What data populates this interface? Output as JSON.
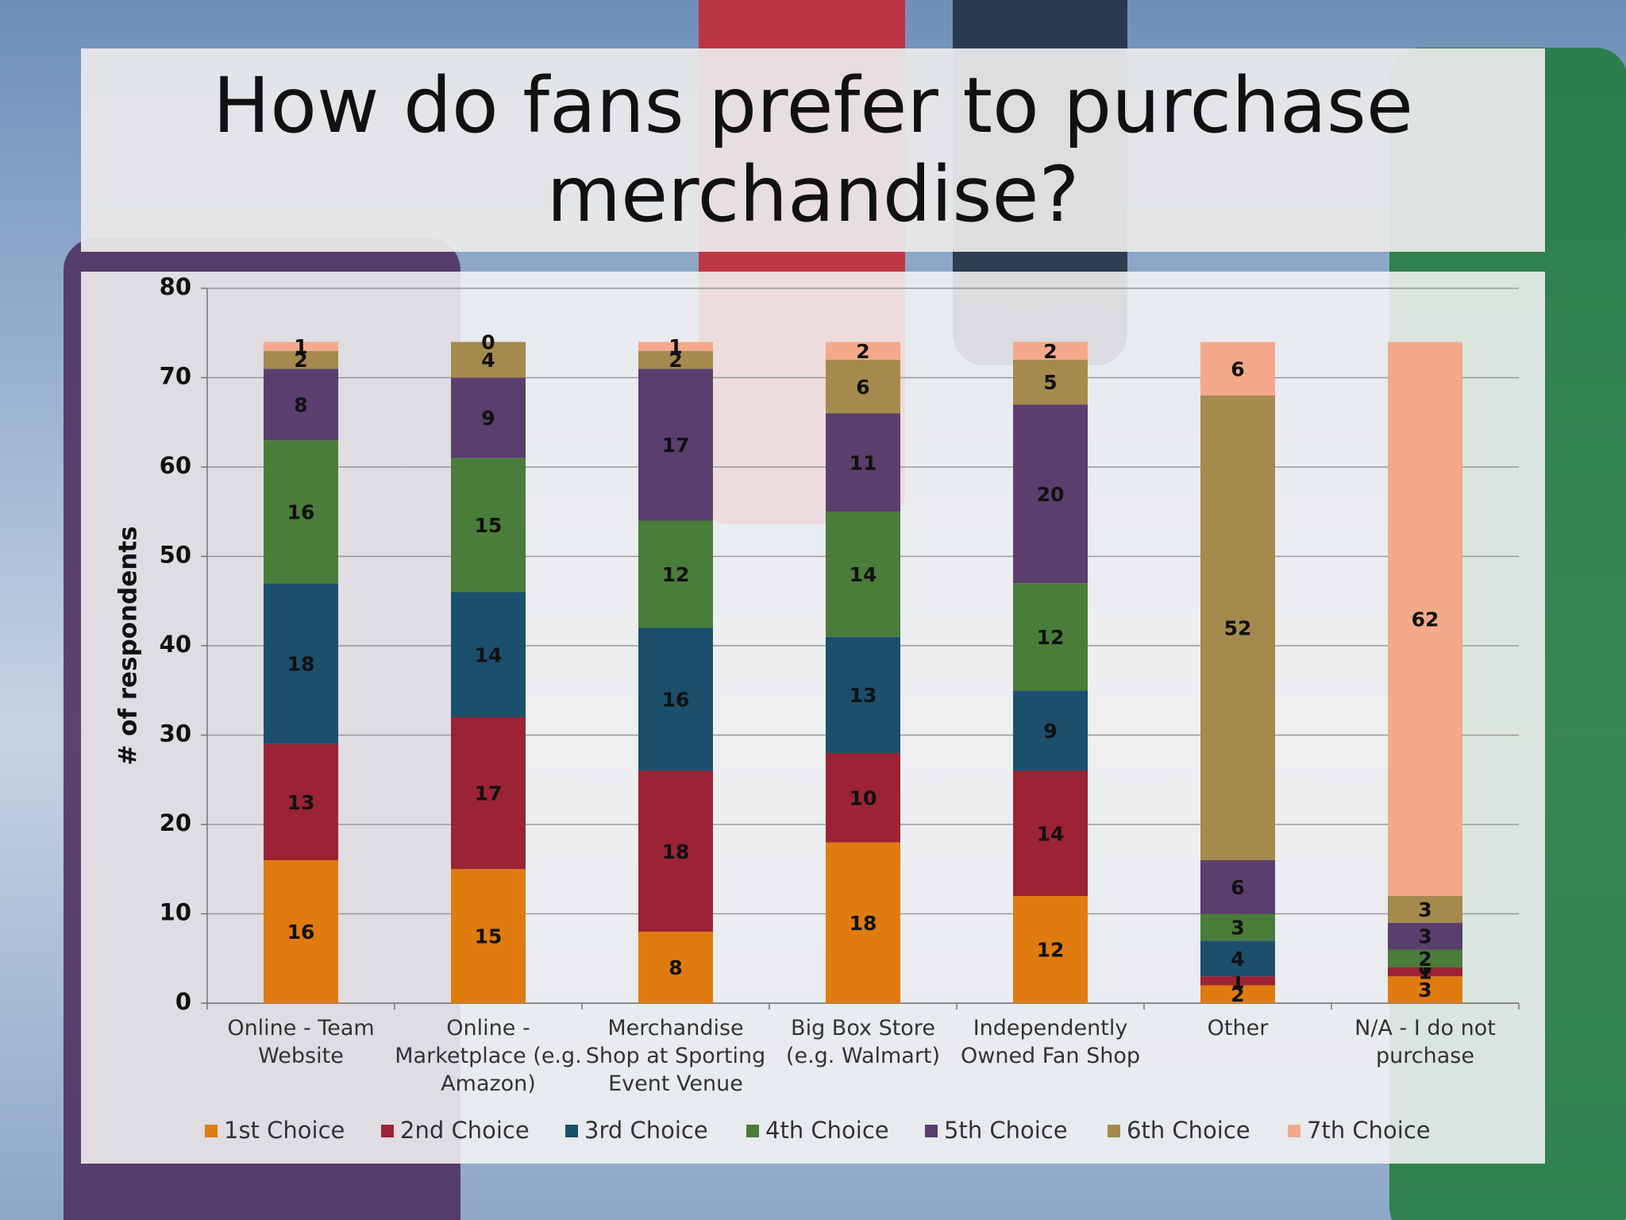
{
  "chart_data": {
    "type": "stacked_bar",
    "title": "How do fans prefer to purchase merchandise?",
    "y_label": "# of respondents",
    "categories": [
      "Online - Team Website",
      "Online - Marketplace (e.g. Amazon)",
      "Merchandise Shop at Sporting Event Venue",
      "Big Box Store (e.g. Walmart)",
      "Independently Owned Fan Shop",
      "Other",
      "N/A - I do not purchase"
    ],
    "series": [
      {
        "name": "1st Choice",
        "color": "#e07b10",
        "values": [
          16,
          15,
          8,
          18,
          12,
          2,
          3
        ]
      },
      {
        "name": "2nd Choice",
        "color": "#9b2335",
        "values": [
          13,
          17,
          18,
          10,
          14,
          1,
          1
        ]
      },
      {
        "name": "3rd Choice",
        "color": "#1b4f6b",
        "values": [
          18,
          14,
          16,
          13,
          9,
          4,
          0
        ]
      },
      {
        "name": "4th Choice",
        "color": "#4a7c3a",
        "values": [
          16,
          15,
          12,
          14,
          12,
          3,
          2
        ]
      },
      {
        "name": "5th Choice",
        "color": "#5a3e6e",
        "values": [
          8,
          9,
          17,
          11,
          20,
          6,
          3
        ]
      },
      {
        "name": "6th Choice",
        "color": "#a58a4e",
        "values": [
          2,
          4,
          2,
          6,
          5,
          52,
          3
        ]
      },
      {
        "name": "7th Choice",
        "color": "#f4a98a",
        "values": [
          1,
          0,
          1,
          2,
          2,
          6,
          62
        ]
      }
    ],
    "ylim": [
      0,
      80
    ],
    "yticks": [
      0,
      10,
      20,
      30,
      40,
      50,
      60,
      70,
      80
    ],
    "grid": true,
    "legend": "bottom"
  }
}
